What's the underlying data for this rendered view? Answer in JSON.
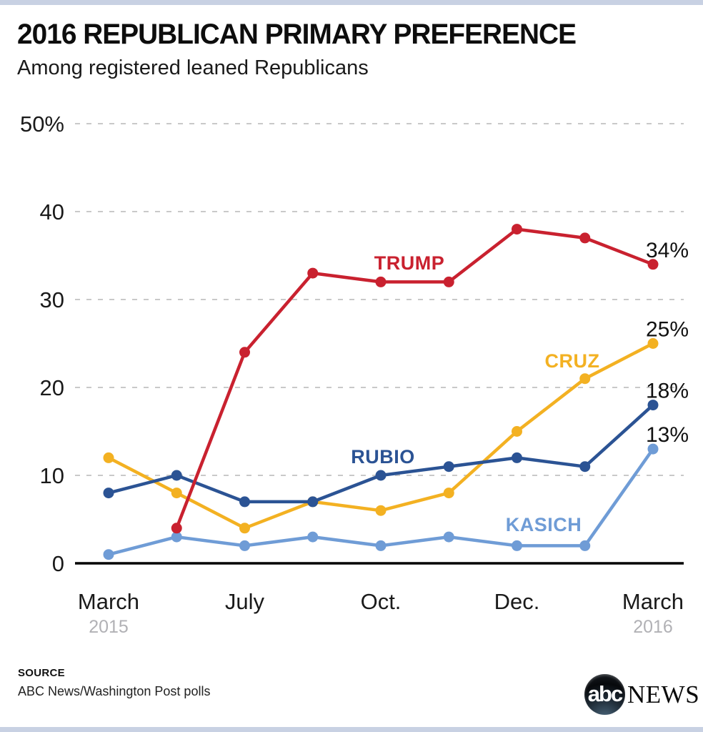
{
  "header": {
    "title": "2016 REPUBLICAN PRIMARY PREFERENCE",
    "subtitle": "Among registered leaned Republicans"
  },
  "footer": {
    "source_label": "SOURCE",
    "source_text": "ABC News/Washington Post polls",
    "logo_abc": "abc",
    "logo_news": "NEWS"
  },
  "theme": {
    "accent_bar": "#c8d1e3",
    "grid_color": "#c9c9c9",
    "axis_color": "#000000",
    "tick_text": "#1a1a1a",
    "muted_text": "#b1b1b5",
    "value_text": "#111111"
  },
  "chart_data": {
    "type": "line",
    "title": "2016 REPUBLICAN PRIMARY PREFERENCE",
    "subtitle": "Among registered leaned Republicans",
    "x_axis": {
      "n_points": 9,
      "ticks": [
        {
          "index": 0,
          "label": "March",
          "sub": "2015"
        },
        {
          "index": 2,
          "label": "July"
        },
        {
          "index": 4,
          "label": "Oct."
        },
        {
          "index": 6,
          "label": "Dec."
        },
        {
          "index": 8,
          "label": "March",
          "sub": "2016"
        }
      ]
    },
    "y_axis": {
      "range": [
        0,
        50
      ],
      "grid": "dashed",
      "ticks": [
        {
          "value": 0,
          "label": "0"
        },
        {
          "value": 10,
          "label": "10"
        },
        {
          "value": 20,
          "label": "20"
        },
        {
          "value": 30,
          "label": "30"
        },
        {
          "value": 40,
          "label": "40"
        },
        {
          "value": 50,
          "label": "50%"
        }
      ]
    },
    "series": [
      {
        "name": "TRUMP",
        "color": "#c9212f",
        "values": [
          null,
          4,
          24,
          33,
          32,
          32,
          38,
          37,
          34
        ],
        "end_label": "34%"
      },
      {
        "name": "CRUZ",
        "color": "#f3b122",
        "values": [
          12,
          8,
          4,
          7,
          6,
          8,
          15,
          21,
          25
        ],
        "end_label": "25%"
      },
      {
        "name": "RUBIO",
        "color": "#2b5394",
        "values": [
          8,
          10,
          7,
          7,
          10,
          11,
          12,
          11,
          18
        ],
        "end_label": "18%"
      },
      {
        "name": "KASICH",
        "color": "#6f9cd6",
        "values": [
          1,
          3,
          2,
          3,
          2,
          3,
          2,
          2,
          13
        ],
        "end_label": "13%"
      }
    ],
    "legend": "inline-series-labels"
  }
}
